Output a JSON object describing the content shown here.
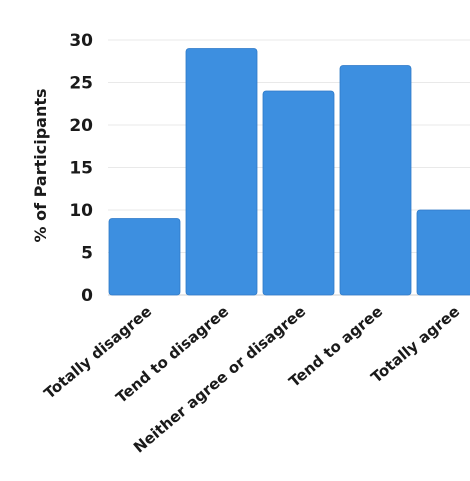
{
  "chart_data": {
    "type": "bar",
    "title": "",
    "xlabel": "",
    "ylabel": "% of Participants",
    "categories": [
      "Totally disagree",
      "Tend to disagree",
      "Neither agree or disagree",
      "Tend to agree",
      "Totally agree"
    ],
    "values": [
      9,
      29,
      24,
      27,
      10
    ],
    "ylim": [
      0,
      30
    ],
    "yticks": [
      0,
      5,
      10,
      15,
      20,
      25,
      30
    ],
    "grid": true,
    "legend": "none",
    "colors": {
      "bar": "#3d8fe0",
      "bar_edge": "#2f7ac8",
      "grid": "#e9e9e9",
      "text": "#1a1a1a"
    }
  }
}
